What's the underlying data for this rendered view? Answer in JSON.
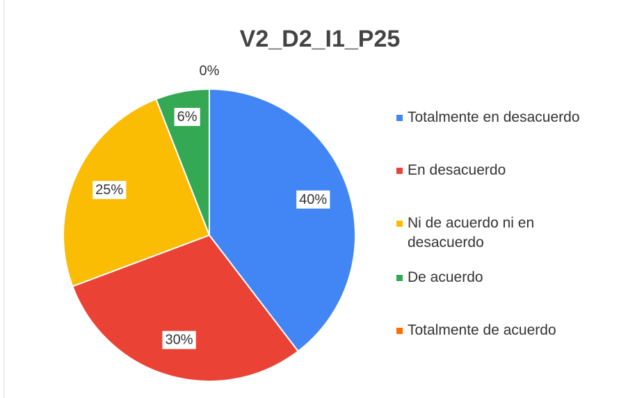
{
  "chart_data": {
    "type": "pie",
    "title": "V2_D2_I1_P25",
    "categories": [
      "Totalmente en desacuerdo",
      "En desacuerdo",
      "Ni de acuerdo ni en desacuerdo",
      "De acuerdo",
      "Totalmente de acuerdo"
    ],
    "values": [
      40,
      30,
      25,
      6,
      0
    ],
    "value_labels": [
      "40%",
      "30%",
      "25%",
      "6%",
      "0%"
    ],
    "colors": [
      "#4285f4",
      "#ea4335",
      "#fbbc04",
      "#34a853",
      "#ff6d01"
    ],
    "legend": "right"
  }
}
